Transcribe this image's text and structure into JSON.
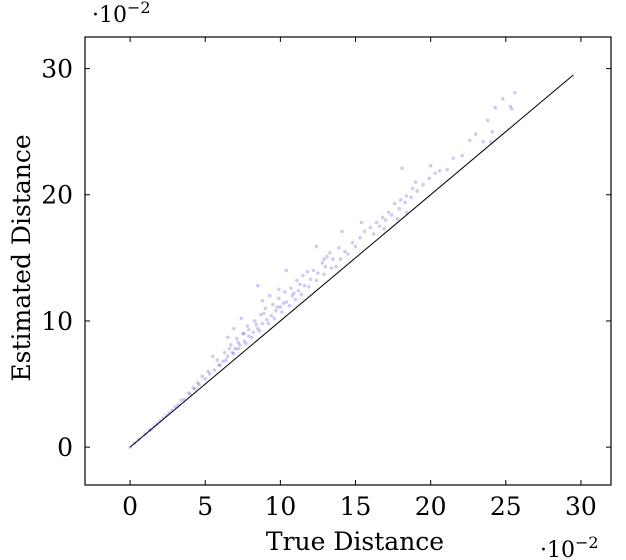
{
  "chart_data": {
    "type": "scatter",
    "xlabel": "True Distance",
    "ylabel": "Estimated Distance",
    "x_multiplier_base": "·10",
    "x_multiplier_exp": "−2",
    "y_multiplier_base": "·10",
    "y_multiplier_exp": "−2",
    "xlim": [
      -3,
      32
    ],
    "ylim": [
      -3,
      32.5
    ],
    "x_ticks": [
      0,
      5,
      10,
      15,
      20,
      25,
      30
    ],
    "y_ticks": [
      0,
      10,
      20,
      30
    ],
    "grid": false,
    "reference_line": {
      "x": [
        0,
        29.5
      ],
      "y": [
        0,
        29.5
      ],
      "color": "#000000"
    },
    "series": [
      {
        "color": "#0000cc",
        "opacity": 0.2,
        "points": [
          [
            0.0,
            0.0
          ],
          [
            0.3,
            0.31
          ],
          [
            0.6,
            0.62
          ],
          [
            1.0,
            1.03
          ],
          [
            1.3,
            1.34
          ],
          [
            1.6,
            1.66
          ],
          [
            2.0,
            2.07
          ],
          [
            2.4,
            2.5
          ],
          [
            2.8,
            2.92
          ],
          [
            3.2,
            3.35
          ],
          [
            3.6,
            3.78
          ],
          [
            4.0,
            4.2
          ],
          [
            4.3,
            4.6
          ],
          [
            4.6,
            4.95
          ],
          [
            5.0,
            5.4
          ],
          [
            5.3,
            5.8
          ],
          [
            5.6,
            6.1
          ],
          [
            5.9,
            6.5
          ],
          [
            6.2,
            6.8
          ],
          [
            6.5,
            7.2
          ],
          [
            6.8,
            7.5
          ],
          [
            7.0,
            7.8
          ],
          [
            7.3,
            8.1
          ],
          [
            7.6,
            8.4
          ],
          [
            7.9,
            8.8
          ],
          [
            8.2,
            9.1
          ],
          [
            8.5,
            9.4
          ],
          [
            8.8,
            9.8
          ],
          [
            9.1,
            10.1
          ],
          [
            9.4,
            10.4
          ],
          [
            9.7,
            10.8
          ],
          [
            10.0,
            11.1
          ],
          [
            10.4,
            11.5
          ],
          [
            10.8,
            12.0
          ],
          [
            11.2,
            12.4
          ],
          [
            11.6,
            12.8
          ],
          [
            12.0,
            13.3
          ],
          [
            12.5,
            13.8
          ],
          [
            13.0,
            14.3
          ],
          [
            13.5,
            14.9
          ],
          [
            5.2,
            6.0
          ],
          [
            5.8,
            6.9
          ],
          [
            6.3,
            7.5
          ],
          [
            6.7,
            8.1
          ],
          [
            7.1,
            8.6
          ],
          [
            7.5,
            9.0
          ],
          [
            7.8,
            9.6
          ],
          [
            8.3,
            10.0
          ],
          [
            8.7,
            10.5
          ],
          [
            9.0,
            11.0
          ],
          [
            9.5,
            11.3
          ],
          [
            9.9,
            11.8
          ],
          [
            10.3,
            12.3
          ],
          [
            10.7,
            12.6
          ],
          [
            11.1,
            13.2
          ],
          [
            11.5,
            13.6
          ],
          [
            12.2,
            14.0
          ],
          [
            12.8,
            14.6
          ],
          [
            13.3,
            15.4
          ],
          [
            13.9,
            15.8
          ],
          [
            6.0,
            6.5
          ],
          [
            6.4,
            6.9
          ],
          [
            6.9,
            7.4
          ],
          [
            7.2,
            7.8
          ],
          [
            7.7,
            8.2
          ],
          [
            8.1,
            8.7
          ],
          [
            8.6,
            9.2
          ],
          [
            9.2,
            9.8
          ],
          [
            9.6,
            10.2
          ],
          [
            10.1,
            10.7
          ],
          [
            10.6,
            11.2
          ],
          [
            11.0,
            11.7
          ],
          [
            11.4,
            12.1
          ],
          [
            11.9,
            12.7
          ],
          [
            12.4,
            13.2
          ],
          [
            12.9,
            13.7
          ],
          [
            13.4,
            14.2
          ],
          [
            14.0,
            14.9
          ],
          [
            14.5,
            15.3
          ],
          [
            15.0,
            15.9
          ],
          [
            15.3,
            16.6
          ],
          [
            15.6,
            17.1
          ],
          [
            16.0,
            17.4
          ],
          [
            16.4,
            17.8
          ],
          [
            16.8,
            18.2
          ],
          [
            17.2,
            18.6
          ],
          [
            17.6,
            19.3
          ],
          [
            18.0,
            19.6
          ],
          [
            18.4,
            19.9
          ],
          [
            18.8,
            20.5
          ],
          [
            14.3,
            15.5
          ],
          [
            14.8,
            16.2
          ],
          [
            15.4,
            17.8
          ],
          [
            16.2,
            16.9
          ],
          [
            16.6,
            17.5
          ],
          [
            17.0,
            18.0
          ],
          [
            17.4,
            18.4
          ],
          [
            17.9,
            18.9
          ],
          [
            18.3,
            19.4
          ],
          [
            18.7,
            19.8
          ],
          [
            19.1,
            20.3
          ],
          [
            19.5,
            20.8
          ],
          [
            19.9,
            21.3
          ],
          [
            20.3,
            21.7
          ],
          [
            20.0,
            22.3
          ],
          [
            18.1,
            22.1
          ],
          [
            19.0,
            21.0
          ],
          [
            21.1,
            22.0
          ],
          [
            21.5,
            22.9
          ],
          [
            20.6,
            21.9
          ],
          [
            22.1,
            23.1
          ],
          [
            22.6,
            24.3
          ],
          [
            23.0,
            24.8
          ],
          [
            23.5,
            24.2
          ],
          [
            23.8,
            25.9
          ],
          [
            24.1,
            25.0
          ],
          [
            24.3,
            26.9
          ],
          [
            24.8,
            27.6
          ],
          [
            25.3,
            27.0
          ],
          [
            25.6,
            28.1
          ],
          [
            25.4,
            26.8
          ],
          [
            24.0,
            24.2
          ],
          [
            18.4,
            18.6
          ],
          [
            17.8,
            18.1
          ],
          [
            16.9,
            17.3
          ],
          [
            13.7,
            14.3
          ],
          [
            10.4,
            14.0
          ],
          [
            9.9,
            12.5
          ],
          [
            8.5,
            12.8
          ],
          [
            11.8,
            13.9
          ],
          [
            12.4,
            15.9
          ],
          [
            12.9,
            14.9
          ],
          [
            13.1,
            15.1
          ],
          [
            14.1,
            17.1
          ],
          [
            8.8,
            11.6
          ],
          [
            9.3,
            12.0
          ],
          [
            7.4,
            10.2
          ],
          [
            6.9,
            9.4
          ],
          [
            6.5,
            8.7
          ],
          [
            5.5,
            7.2
          ],
          [
            4.8,
            5.6
          ],
          [
            4.5,
            5.1
          ],
          [
            4.2,
            4.7
          ],
          [
            3.9,
            4.3
          ],
          [
            3.4,
            3.7
          ],
          [
            3.0,
            3.2
          ],
          [
            2.6,
            2.7
          ],
          [
            2.2,
            2.3
          ],
          [
            1.8,
            1.85
          ],
          [
            1.4,
            1.42
          ],
          [
            11.3,
            12.9
          ],
          [
            10.9,
            12.2
          ],
          [
            10.2,
            11.4
          ],
          [
            9.8,
            11.1
          ],
          [
            8.9,
            10.6
          ],
          [
            8.4,
            9.7
          ],
          [
            7.9,
            9.3
          ],
          [
            7.6,
            9.0
          ],
          [
            7.2,
            8.3
          ],
          [
            6.6,
            7.8
          ]
        ]
      }
    ]
  }
}
